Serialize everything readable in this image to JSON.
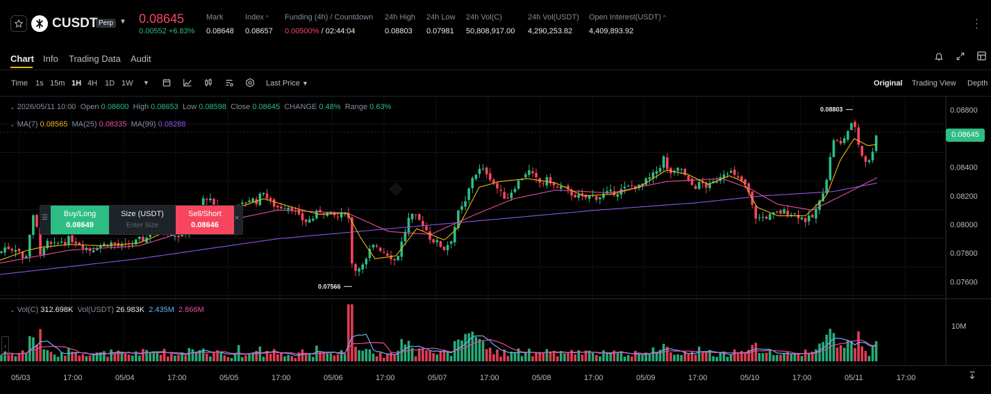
{
  "header": {
    "symbol": "CUSDT",
    "badge": "Perp",
    "last_price": "0.08645",
    "change": "0.00552 +6.83%",
    "stats": [
      {
        "label": "Mark",
        "value": "0.08648"
      },
      {
        "label": "Index",
        "value": "0.08657"
      },
      {
        "label": "Funding (4h) / Countdown",
        "value_red": "0.00500%",
        "value": " / 02:44:04"
      },
      {
        "label": "24h High",
        "value": "0.08803"
      },
      {
        "label": "24h Low",
        "value": "0.07981"
      },
      {
        "label": "24h Vol(C)",
        "value": "50,808,917.00"
      },
      {
        "label": "24h Vol(USDT)",
        "value": "4,290,253.82"
      },
      {
        "label": "Open Interest(USDT)",
        "value": "4,409,893.92"
      }
    ]
  },
  "tabs": [
    "Chart",
    "Info",
    "Trading Data",
    "Audit"
  ],
  "toolbar": {
    "intervals": [
      "Time",
      "1s",
      "15m",
      "1H",
      "4H",
      "1D",
      "1W"
    ],
    "active_interval": "1H",
    "price_type": "Last Price",
    "views": [
      "Original",
      "Trading View",
      "Depth"
    ],
    "active_view": "Original"
  },
  "ohlc": {
    "date": "2026/05/11 10:00",
    "open_label": "Open",
    "open": "0.08600",
    "high_label": "High",
    "high": "0.08653",
    "low_label": "Low",
    "low": "0.08598",
    "close_label": "Close",
    "close": "0.08645",
    "change_label": "CHANGE",
    "change": "0.48%",
    "range_label": "Range",
    "range": "0.63%"
  },
  "ma": {
    "ma7_label": "MA(7)",
    "ma7": "0.08565",
    "ma25_label": "MA(25)",
    "ma25": "0.08335",
    "ma99_label": "MA(99)",
    "ma99": "0.08288"
  },
  "order_widget": {
    "buy_label": "Buy/Long",
    "buy_price": "0.08649",
    "size_label": "Size (USDT)",
    "size_placeholder": "Enter Size",
    "sell_label": "Sell/Short",
    "sell_price": "0.08646"
  },
  "volume_legend": {
    "vol_c_label": "Vol(C)",
    "vol_c": "312.698K",
    "vol_usdt_label": "Vol(USDT)",
    "vol_usdt": "26.983K",
    "ma1": "2.435M",
    "ma2": "2.866M"
  },
  "annotations": {
    "high": "0.08803",
    "low": "0.07566"
  },
  "chart_data": {
    "type": "candlestick",
    "price_axis": [
      "0.08800",
      "0.08600",
      "0.08400",
      "0.08200",
      "0.08000",
      "0.07800",
      "0.07600"
    ],
    "current_price": "0.08645",
    "volume_axis": [
      "10M"
    ],
    "time_axis": [
      "05/03",
      "17:00",
      "05/04",
      "17:00",
      "05/05",
      "17:00",
      "05/06",
      "17:00",
      "05/07",
      "17:00",
      "05/08",
      "17:00",
      "05/09",
      "17:00",
      "05/10",
      "17:00",
      "05/11",
      "17:00"
    ],
    "ylim": [
      0.0748,
      0.0884
    ],
    "close_path": [
      [
        0,
        0.078
      ],
      [
        5,
        0.0783
      ],
      [
        10,
        0.0785
      ],
      [
        15,
        0.0782
      ],
      [
        20,
        0.0784
      ],
      [
        25,
        0.0783
      ],
      [
        30,
        0.078
      ],
      [
        35,
        0.0772
      ],
      [
        40,
        0.0785
      ],
      [
        45,
        0.08
      ],
      [
        50,
        0.0808
      ],
      [
        55,
        0.079
      ],
      [
        60,
        0.0775
      ],
      [
        65,
        0.0785
      ],
      [
        70,
        0.0788
      ],
      [
        75,
        0.0784
      ],
      [
        80,
        0.0786
      ],
      [
        85,
        0.0787
      ],
      [
        90,
        0.0789
      ],
      [
        95,
        0.0788
      ],
      [
        100,
        0.079
      ],
      [
        110,
        0.0788
      ],
      [
        120,
        0.0785
      ],
      [
        130,
        0.0782
      ],
      [
        140,
        0.0785
      ],
      [
        150,
        0.0786
      ],
      [
        160,
        0.0787
      ],
      [
        170,
        0.0785
      ],
      [
        180,
        0.0784
      ],
      [
        190,
        0.0786
      ],
      [
        200,
        0.0789
      ],
      [
        210,
        0.079
      ],
      [
        220,
        0.0797
      ],
      [
        230,
        0.0799
      ],
      [
        240,
        0.0795
      ],
      [
        250,
        0.0793
      ],
      [
        260,
        0.0792
      ],
      [
        270,
        0.0798
      ],
      [
        280,
        0.0807
      ],
      [
        290,
        0.0814
      ],
      [
        295,
        0.082
      ],
      [
        300,
        0.0818
      ],
      [
        305,
        0.0815
      ],
      [
        310,
        0.081
      ],
      [
        320,
        0.0812
      ],
      [
        330,
        0.0808
      ],
      [
        340,
        0.0811
      ],
      [
        350,
        0.0814
      ],
      [
        360,
        0.0818
      ],
      [
        370,
        0.0816
      ],
      [
        375,
        0.082
      ],
      [
        380,
        0.0824
      ],
      [
        385,
        0.0818
      ],
      [
        390,
        0.0815
      ],
      [
        400,
        0.0812
      ],
      [
        410,
        0.0813
      ],
      [
        420,
        0.0812
      ],
      [
        430,
        0.0805
      ],
      [
        440,
        0.0802
      ],
      [
        450,
        0.0804
      ],
      [
        460,
        0.081
      ],
      [
        470,
        0.0808
      ],
      [
        480,
        0.0806
      ],
      [
        490,
        0.0805
      ],
      [
        500,
        0.0812
      ],
      [
        505,
        0.079
      ],
      [
        508,
        0.0765
      ],
      [
        512,
        0.0768
      ],
      [
        518,
        0.0772
      ],
      [
        525,
        0.077
      ],
      [
        530,
        0.078
      ],
      [
        540,
        0.0786
      ],
      [
        550,
        0.0782
      ],
      [
        560,
        0.0779
      ],
      [
        570,
        0.0774
      ],
      [
        580,
        0.079
      ],
      [
        590,
        0.0806
      ],
      [
        600,
        0.0804
      ],
      [
        610,
        0.08
      ],
      [
        620,
        0.079
      ],
      [
        630,
        0.0787
      ],
      [
        640,
        0.0783
      ],
      [
        650,
        0.079
      ],
      [
        660,
        0.0808
      ],
      [
        670,
        0.0815
      ],
      [
        680,
        0.0833
      ],
      [
        690,
        0.0838
      ],
      [
        700,
        0.0837
      ],
      [
        710,
        0.083
      ],
      [
        720,
        0.0822
      ],
      [
        730,
        0.0818
      ],
      [
        740,
        0.0826
      ],
      [
        750,
        0.0832
      ],
      [
        760,
        0.0838
      ],
      [
        770,
        0.0832
      ],
      [
        780,
        0.0828
      ],
      [
        790,
        0.0832
      ],
      [
        800,
        0.0825
      ],
      [
        810,
        0.0826
      ],
      [
        820,
        0.0822
      ],
      [
        830,
        0.082
      ],
      [
        840,
        0.0818
      ],
      [
        850,
        0.082
      ],
      [
        860,
        0.0819
      ],
      [
        870,
        0.0821
      ],
      [
        880,
        0.0822
      ],
      [
        890,
        0.0823
      ],
      [
        900,
        0.0825
      ],
      [
        910,
        0.0827
      ],
      [
        920,
        0.0826
      ],
      [
        930,
        0.083
      ],
      [
        940,
        0.0834
      ],
      [
        950,
        0.084
      ],
      [
        955,
        0.0848
      ],
      [
        960,
        0.0838
      ],
      [
        970,
        0.0835
      ],
      [
        980,
        0.084
      ],
      [
        990,
        0.083
      ],
      [
        1000,
        0.0826
      ],
      [
        1010,
        0.0829
      ],
      [
        1020,
        0.0826
      ],
      [
        1030,
        0.083
      ],
      [
        1040,
        0.0836
      ],
      [
        1050,
        0.0838
      ],
      [
        1060,
        0.0832
      ],
      [
        1070,
        0.083
      ],
      [
        1080,
        0.082
      ],
      [
        1085,
        0.0808
      ],
      [
        1090,
        0.0804
      ],
      [
        1100,
        0.0805
      ],
      [
        1110,
        0.0806
      ],
      [
        1120,
        0.0808
      ],
      [
        1130,
        0.0809
      ],
      [
        1140,
        0.0808
      ],
      [
        1150,
        0.0806
      ],
      [
        1160,
        0.0803
      ],
      [
        1170,
        0.0805
      ],
      [
        1180,
        0.0815
      ],
      [
        1190,
        0.0832
      ],
      [
        1195,
        0.0845
      ],
      [
        1200,
        0.086
      ],
      [
        1210,
        0.0855
      ],
      [
        1220,
        0.0865
      ],
      [
        1230,
        0.0872
      ],
      [
        1235,
        0.0858
      ],
      [
        1240,
        0.085
      ],
      [
        1250,
        0.0842
      ],
      [
        1255,
        0.0848
      ],
      [
        1260,
        0.0862
      ],
      [
        1264,
        0.0865
      ]
    ],
    "ma7_path": [
      [
        0,
        0.0775
      ],
      [
        40,
        0.0782
      ],
      [
        60,
        0.0784
      ],
      [
        100,
        0.0786
      ],
      [
        150,
        0.0785
      ],
      [
        200,
        0.0787
      ],
      [
        240,
        0.0795
      ],
      [
        270,
        0.0797
      ],
      [
        300,
        0.0812
      ],
      [
        350,
        0.0813
      ],
      [
        380,
        0.0818
      ],
      [
        420,
        0.0812
      ],
      [
        460,
        0.0807
      ],
      [
        500,
        0.0808
      ],
      [
        520,
        0.079
      ],
      [
        540,
        0.0776
      ],
      [
        570,
        0.0778
      ],
      [
        600,
        0.0797
      ],
      [
        640,
        0.0789
      ],
      [
        660,
        0.0798
      ],
      [
        690,
        0.0826
      ],
      [
        720,
        0.083
      ],
      [
        760,
        0.0832
      ],
      [
        800,
        0.0829
      ],
      [
        840,
        0.082
      ],
      [
        880,
        0.0821
      ],
      [
        920,
        0.0826
      ],
      [
        960,
        0.0838
      ],
      [
        990,
        0.0835
      ],
      [
        1020,
        0.0828
      ],
      [
        1050,
        0.0834
      ],
      [
        1070,
        0.083
      ],
      [
        1090,
        0.0812
      ],
      [
        1120,
        0.0806
      ],
      [
        1160,
        0.0806
      ],
      [
        1190,
        0.082
      ],
      [
        1210,
        0.0845
      ],
      [
        1230,
        0.086
      ],
      [
        1250,
        0.0855
      ],
      [
        1264,
        0.0856
      ]
    ],
    "ma25_path": [
      [
        0,
        0.0773
      ],
      [
        100,
        0.0782
      ],
      [
        200,
        0.0785
      ],
      [
        300,
        0.08
      ],
      [
        400,
        0.081
      ],
      [
        500,
        0.0808
      ],
      [
        560,
        0.0795
      ],
      [
        620,
        0.0793
      ],
      [
        680,
        0.0806
      ],
      [
        740,
        0.0818
      ],
      [
        800,
        0.0824
      ],
      [
        880,
        0.0822
      ],
      [
        960,
        0.083
      ],
      [
        1040,
        0.0832
      ],
      [
        1080,
        0.0825
      ],
      [
        1120,
        0.0814
      ],
      [
        1170,
        0.081
      ],
      [
        1220,
        0.0822
      ],
      [
        1264,
        0.0833
      ]
    ],
    "ma99_path": [
      [
        0,
        0.0765
      ],
      [
        200,
        0.0776
      ],
      [
        400,
        0.079
      ],
      [
        560,
        0.0797
      ],
      [
        700,
        0.0803
      ],
      [
        860,
        0.081
      ],
      [
        1000,
        0.0815
      ],
      [
        1100,
        0.082
      ],
      [
        1200,
        0.0823
      ],
      [
        1264,
        0.0829
      ]
    ]
  },
  "colors": {
    "up": "#2ebd85",
    "down": "#f6465d",
    "ma7": "#f0b90b",
    "ma25": "#e94ca5",
    "ma99": "#9155e6",
    "vol_ma1": "#64b5f6",
    "vol_ma2": "#e94ca5"
  }
}
